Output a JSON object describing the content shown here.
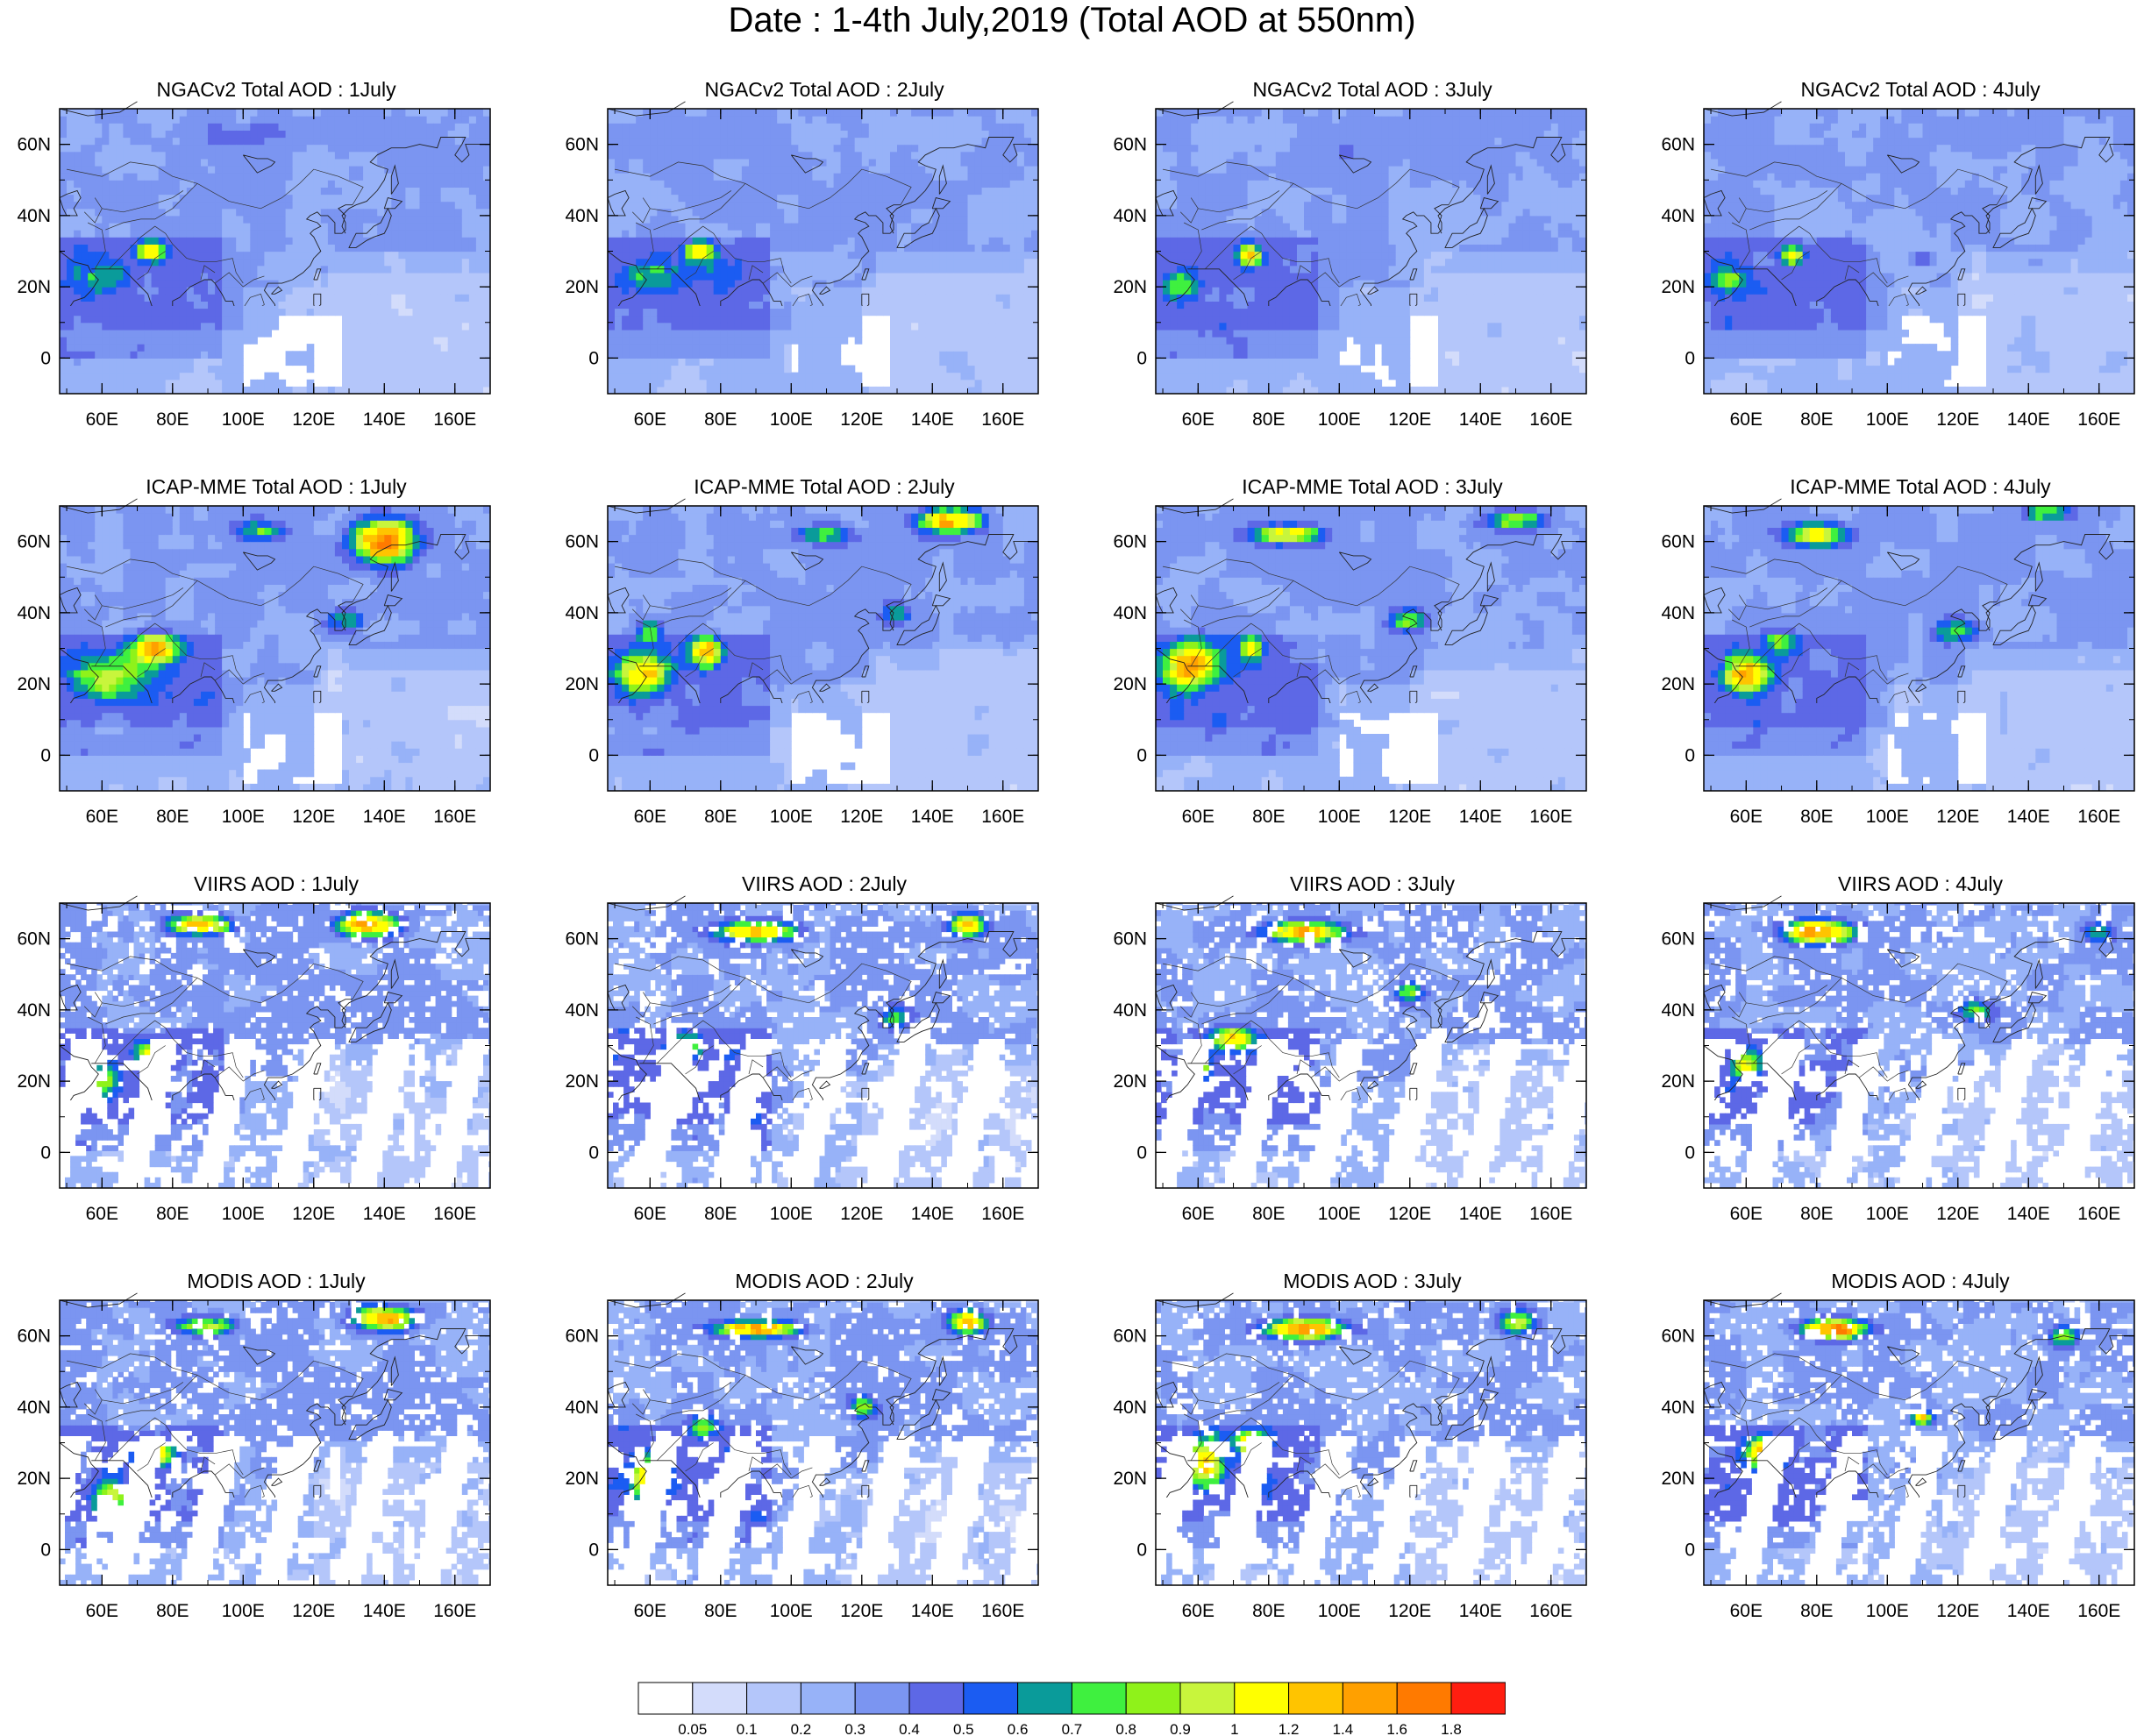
{
  "title": "Date : 1-4th July,2019 (Total AOD at 550nm)",
  "axes": {
    "x_ticks": [
      "60E",
      "80E",
      "100E",
      "120E",
      "140E",
      "160E"
    ],
    "y_ticks": [
      "60N",
      "40N",
      "20N",
      "0"
    ],
    "lon_range": [
      48,
      170
    ],
    "lat_range": [
      -10,
      70
    ]
  },
  "days": [
    "1July",
    "2July",
    "3July",
    "4July"
  ],
  "rows": [
    {
      "name": "NGACv2",
      "panels": [
        {
          "title": "NGACv2 Total AOD : 1July"
        },
        {
          "title": "NGACv2 Total AOD : 2July"
        },
        {
          "title": "NGACv2 Total AOD : 3July"
        },
        {
          "title": "NGACv2 Total AOD : 4July"
        }
      ]
    },
    {
      "name": "ICAP-MME",
      "panels": [
        {
          "title": "ICAP-MME Total AOD : 1July"
        },
        {
          "title": "ICAP-MME Total AOD : 2July"
        },
        {
          "title": "ICAP-MME Total AOD : 3July"
        },
        {
          "title": "ICAP-MME Total AOD : 4July"
        }
      ]
    },
    {
      "name": "VIIRS",
      "panels": [
        {
          "title": "VIIRS AOD : 1July"
        },
        {
          "title": "VIIRS AOD : 2July"
        },
        {
          "title": "VIIRS AOD : 3July"
        },
        {
          "title": "VIIRS AOD : 4July"
        }
      ]
    },
    {
      "name": "MODIS",
      "panels": [
        {
          "title": "MODIS AOD : 1July"
        },
        {
          "title": "MODIS AOD : 2July"
        },
        {
          "title": "MODIS AOD : 3July"
        },
        {
          "title": "MODIS AOD : 4July"
        }
      ]
    }
  ],
  "colorbar": {
    "labels": [
      "0.05",
      "0.1",
      "0.2",
      "0.3",
      "0.4",
      "0.5",
      "0.6",
      "0.7",
      "0.8",
      "0.9",
      "1",
      "1.2",
      "1.4",
      "1.6",
      "1.8"
    ],
    "colors": [
      "#ffffff",
      "#d3dcfb",
      "#b4c6fa",
      "#97b2f8",
      "#7b95f1",
      "#5d68e6",
      "#1b5cf2",
      "#0a9b9a",
      "#3ff03f",
      "#8ff21a",
      "#c8f53c",
      "#ffff00",
      "#ffc400",
      "#ffa000",
      "#ff7a00",
      "#ff1e10"
    ]
  }
}
